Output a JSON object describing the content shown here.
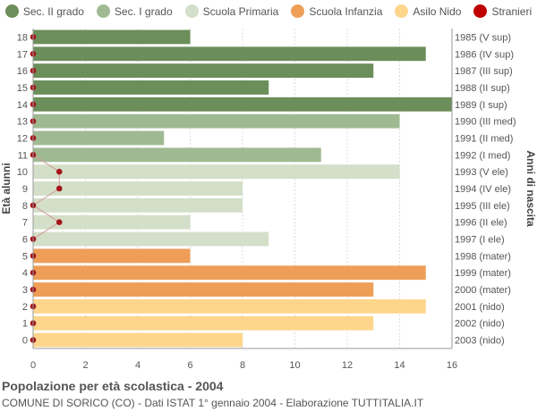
{
  "chart_data": {
    "type": "bar",
    "orientation": "horizontal",
    "title": "Popolazione per età scolastica - 2004",
    "subtitle": "COMUNE DI SORICO (CO) - Dati ISTAT 1° gennaio 2004 - Elaborazione TUTTITALIA.IT",
    "ylabel_left": "Età alunni",
    "ylabel_right": "Anni di nascita",
    "xlim": [
      0,
      16
    ],
    "x_ticks": [
      "0",
      "2",
      "4",
      "6",
      "8",
      "10",
      "12",
      "14",
      "16"
    ],
    "grid": true,
    "legend_position": "top",
    "legend": [
      {
        "label": "Sec. II grado",
        "color": "#6b8e5a"
      },
      {
        "label": "Sec. I grado",
        "color": "#9fba92"
      },
      {
        "label": "Scuola Primaria",
        "color": "#d3dfc8"
      },
      {
        "label": "Scuola Infanzia",
        "color": "#ee9e57"
      },
      {
        "label": "Asilo Nido",
        "color": "#fdd68c"
      },
      {
        "label": "Stranieri",
        "color": "#c00000"
      }
    ],
    "rows": [
      {
        "age": "18",
        "year": "1985 (V sup)",
        "value": 6,
        "stranieri": 0,
        "group": 0
      },
      {
        "age": "17",
        "year": "1986 (IV sup)",
        "value": 15,
        "stranieri": 0,
        "group": 0
      },
      {
        "age": "16",
        "year": "1987 (III sup)",
        "value": 13,
        "stranieri": 0,
        "group": 0
      },
      {
        "age": "15",
        "year": "1988 (II sup)",
        "value": 9,
        "stranieri": 0,
        "group": 0
      },
      {
        "age": "14",
        "year": "1989 (I sup)",
        "value": 16,
        "stranieri": 0,
        "group": 0
      },
      {
        "age": "13",
        "year": "1990 (III med)",
        "value": 14,
        "stranieri": 0,
        "group": 1
      },
      {
        "age": "12",
        "year": "1991 (II med)",
        "value": 5,
        "stranieri": 0,
        "group": 1
      },
      {
        "age": "11",
        "year": "1992 (I med)",
        "value": 11,
        "stranieri": 0,
        "group": 1
      },
      {
        "age": "10",
        "year": "1993 (V ele)",
        "value": 14,
        "stranieri": 1,
        "group": 2
      },
      {
        "age": "9",
        "year": "1994 (IV ele)",
        "value": 8,
        "stranieri": 1,
        "group": 2
      },
      {
        "age": "8",
        "year": "1995 (III ele)",
        "value": 8,
        "stranieri": 0,
        "group": 2
      },
      {
        "age": "7",
        "year": "1996 (II ele)",
        "value": 6,
        "stranieri": 1,
        "group": 2
      },
      {
        "age": "6",
        "year": "1997 (I ele)",
        "value": 9,
        "stranieri": 0,
        "group": 2
      },
      {
        "age": "5",
        "year": "1998 (mater)",
        "value": 6,
        "stranieri": 0,
        "group": 3
      },
      {
        "age": "4",
        "year": "1999 (mater)",
        "value": 15,
        "stranieri": 0,
        "group": 3
      },
      {
        "age": "3",
        "year": "2000 (mater)",
        "value": 13,
        "stranieri": 0,
        "group": 3
      },
      {
        "age": "2",
        "year": "2001 (nido)",
        "value": 15,
        "stranieri": 0,
        "group": 4
      },
      {
        "age": "1",
        "year": "2002 (nido)",
        "value": 13,
        "stranieri": 0,
        "group": 4
      },
      {
        "age": "0",
        "year": "2003 (nido)",
        "value": 8,
        "stranieri": 0,
        "group": 4
      }
    ]
  }
}
